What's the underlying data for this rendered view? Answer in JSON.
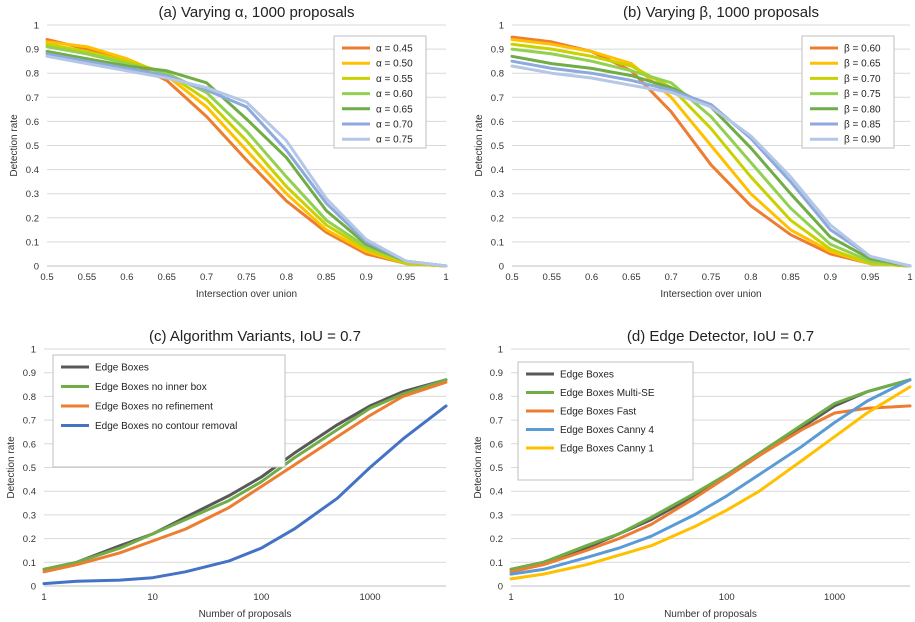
{
  "chart_data": [
    {
      "type": "line",
      "title": "(a) Varying α, 1000 proposals",
      "xlabel": "Intersection over union",
      "ylabel": "Detection rate",
      "xscale": "linear",
      "xlim": [
        0.5,
        1
      ],
      "ylim": [
        0,
        1
      ],
      "xticks": [
        "0.5",
        "0.55",
        "0.6",
        "0.65",
        "0.7",
        "0.75",
        "0.8",
        "0.85",
        "0.9",
        "0.95",
        "1"
      ],
      "yticks": [
        "0",
        "0.1",
        "0.2",
        "0.3",
        "0.4",
        "0.5",
        "0.6",
        "0.7",
        "0.8",
        "0.9",
        "1"
      ],
      "legend": "top-right",
      "grid": "horizontal",
      "x": [
        0.5,
        0.55,
        0.6,
        0.65,
        0.7,
        0.75,
        0.8,
        0.85,
        0.9,
        0.95,
        1.0
      ],
      "series": [
        {
          "name": "α = 0.45",
          "color": "#ED7D31",
          "values": [
            0.94,
            0.9,
            0.85,
            0.77,
            0.62,
            0.44,
            0.27,
            0.14,
            0.05,
            0.01,
            0.0
          ]
        },
        {
          "name": "α = 0.50",
          "color": "#FFC000",
          "values": [
            0.93,
            0.91,
            0.86,
            0.79,
            0.66,
            0.48,
            0.3,
            0.15,
            0.06,
            0.01,
            0.0
          ]
        },
        {
          "name": "α = 0.55",
          "color": "#C9D200",
          "values": [
            0.92,
            0.89,
            0.85,
            0.8,
            0.69,
            0.52,
            0.33,
            0.17,
            0.07,
            0.01,
            0.0
          ]
        },
        {
          "name": "α = 0.60",
          "color": "#92D050",
          "values": [
            0.91,
            0.88,
            0.84,
            0.8,
            0.72,
            0.56,
            0.37,
            0.19,
            0.08,
            0.02,
            0.0
          ]
        },
        {
          "name": "α = 0.65",
          "color": "#70AD47",
          "values": [
            0.89,
            0.86,
            0.83,
            0.81,
            0.76,
            0.61,
            0.45,
            0.23,
            0.09,
            0.02,
            0.0
          ]
        },
        {
          "name": "α = 0.70",
          "color": "#8EA9DB",
          "values": [
            0.88,
            0.85,
            0.82,
            0.79,
            0.73,
            0.66,
            0.48,
            0.26,
            0.1,
            0.02,
            0.0
          ]
        },
        {
          "name": "α = 0.75",
          "color": "#B4C7E7",
          "values": [
            0.87,
            0.84,
            0.81,
            0.78,
            0.74,
            0.68,
            0.52,
            0.28,
            0.11,
            0.02,
            0.0
          ]
        }
      ]
    },
    {
      "type": "line",
      "title": "(b) Varying β, 1000 proposals",
      "xlabel": "Intersection over union",
      "ylabel": "Detection rate",
      "xscale": "linear",
      "xlim": [
        0.5,
        1
      ],
      "ylim": [
        0,
        1
      ],
      "xticks": [
        "0.5",
        "0.55",
        "0.6",
        "0.65",
        "0.7",
        "0.75",
        "0.8",
        "0.85",
        "0.9",
        "0.95",
        "1"
      ],
      "yticks": [
        "0",
        "0.1",
        "0.2",
        "0.3",
        "0.4",
        "0.5",
        "0.6",
        "0.7",
        "0.8",
        "0.9",
        "1"
      ],
      "legend": "top-right",
      "grid": "horizontal",
      "x": [
        0.5,
        0.55,
        0.6,
        0.65,
        0.7,
        0.75,
        0.8,
        0.85,
        0.9,
        0.95,
        1.0
      ],
      "series": [
        {
          "name": "β = 0.60",
          "color": "#ED7D31",
          "values": [
            0.95,
            0.93,
            0.89,
            0.81,
            0.64,
            0.42,
            0.25,
            0.13,
            0.05,
            0.01,
            0.0
          ]
        },
        {
          "name": "β = 0.65",
          "color": "#FFC000",
          "values": [
            0.94,
            0.92,
            0.89,
            0.84,
            0.7,
            0.5,
            0.3,
            0.15,
            0.06,
            0.01,
            0.0
          ]
        },
        {
          "name": "β = 0.70",
          "color": "#C9D200",
          "values": [
            0.92,
            0.9,
            0.87,
            0.83,
            0.74,
            0.57,
            0.37,
            0.19,
            0.07,
            0.01,
            0.0
          ]
        },
        {
          "name": "β = 0.75",
          "color": "#92D050",
          "values": [
            0.9,
            0.88,
            0.85,
            0.81,
            0.76,
            0.62,
            0.43,
            0.24,
            0.09,
            0.02,
            0.0
          ]
        },
        {
          "name": "β = 0.80",
          "color": "#70AD47",
          "values": [
            0.87,
            0.84,
            0.82,
            0.79,
            0.74,
            0.66,
            0.49,
            0.3,
            0.12,
            0.03,
            0.0
          ]
        },
        {
          "name": "β = 0.85",
          "color": "#8EA9DB",
          "values": [
            0.85,
            0.82,
            0.8,
            0.77,
            0.73,
            0.67,
            0.53,
            0.35,
            0.15,
            0.04,
            0.0
          ]
        },
        {
          "name": "β = 0.90",
          "color": "#B4C7E7",
          "values": [
            0.83,
            0.8,
            0.78,
            0.75,
            0.72,
            0.66,
            0.54,
            0.37,
            0.17,
            0.04,
            0.0
          ]
        }
      ]
    },
    {
      "type": "line",
      "title": "(c) Algorithm Variants, IoU = 0.7",
      "xlabel": "Number of proposals",
      "ylabel": "Detection rate",
      "xscale": "log",
      "xlim": [
        1,
        5000
      ],
      "ylim": [
        0,
        1
      ],
      "xticks": [
        "1",
        "10",
        "100",
        "1000"
      ],
      "yticks": [
        "0",
        "0.1",
        "0.2",
        "0.3",
        "0.4",
        "0.5",
        "0.6",
        "0.7",
        "0.8",
        "0.9",
        "1"
      ],
      "legend": "top-left",
      "grid": "horizontal",
      "x": [
        1,
        2,
        5,
        10,
        20,
        50,
        100,
        200,
        500,
        1000,
        2000,
        5000
      ],
      "series": [
        {
          "name": "Edge Boxes",
          "color": "#595959",
          "values": [
            0.07,
            0.1,
            0.17,
            0.22,
            0.29,
            0.38,
            0.46,
            0.56,
            0.68,
            0.76,
            0.82,
            0.87
          ]
        },
        {
          "name": "Edge Boxes no inner box",
          "color": "#70AD47",
          "values": [
            0.07,
            0.1,
            0.16,
            0.22,
            0.28,
            0.36,
            0.44,
            0.54,
            0.66,
            0.75,
            0.81,
            0.87
          ]
        },
        {
          "name": "Edge Boxes no refinement",
          "color": "#ED7D31",
          "values": [
            0.06,
            0.09,
            0.14,
            0.19,
            0.24,
            0.33,
            0.42,
            0.51,
            0.63,
            0.72,
            0.8,
            0.86
          ]
        },
        {
          "name": "Edge Boxes no contour removal",
          "color": "#4472C4",
          "values": [
            0.01,
            0.02,
            0.025,
            0.035,
            0.06,
            0.105,
            0.16,
            0.24,
            0.37,
            0.5,
            0.62,
            0.76
          ]
        }
      ]
    },
    {
      "type": "line",
      "title": "(d) Edge Detector, IoU = 0.7",
      "xlabel": "Number of proposals",
      "ylabel": "Detection rate",
      "xscale": "log",
      "xlim": [
        1,
        5000
      ],
      "ylim": [
        0,
        1
      ],
      "xticks": [
        "1",
        "10",
        "100",
        "1000"
      ],
      "yticks": [
        "0",
        "0.1",
        "0.2",
        "0.3",
        "0.4",
        "0.5",
        "0.6",
        "0.7",
        "0.8",
        "0.9",
        "1"
      ],
      "legend": "top-left",
      "grid": "horizontal",
      "x": [
        1,
        2,
        5,
        10,
        20,
        50,
        100,
        200,
        500,
        1000,
        2000,
        5000
      ],
      "series": [
        {
          "name": "Edge Boxes",
          "color": "#595959",
          "values": [
            0.07,
            0.1,
            0.16,
            0.22,
            0.28,
            0.38,
            0.46,
            0.55,
            0.67,
            0.76,
            0.82,
            0.87
          ]
        },
        {
          "name": "Edge Boxes Multi-SE",
          "color": "#70AD47",
          "values": [
            0.07,
            0.1,
            0.17,
            0.22,
            0.29,
            0.39,
            0.47,
            0.56,
            0.68,
            0.77,
            0.82,
            0.87
          ]
        },
        {
          "name": "Edge Boxes Fast",
          "color": "#ED7D31",
          "values": [
            0.06,
            0.09,
            0.15,
            0.2,
            0.26,
            0.37,
            0.46,
            0.55,
            0.66,
            0.73,
            0.75,
            0.76
          ]
        },
        {
          "name": "Edge Boxes Canny 4",
          "color": "#5B9BD5",
          "values": [
            0.05,
            0.07,
            0.12,
            0.16,
            0.21,
            0.3,
            0.38,
            0.47,
            0.59,
            0.69,
            0.78,
            0.87
          ]
        },
        {
          "name": "Edge Boxes Canny 1",
          "color": "#FFC000",
          "values": [
            0.03,
            0.05,
            0.09,
            0.13,
            0.17,
            0.25,
            0.32,
            0.4,
            0.53,
            0.63,
            0.73,
            0.84
          ]
        }
      ]
    }
  ]
}
